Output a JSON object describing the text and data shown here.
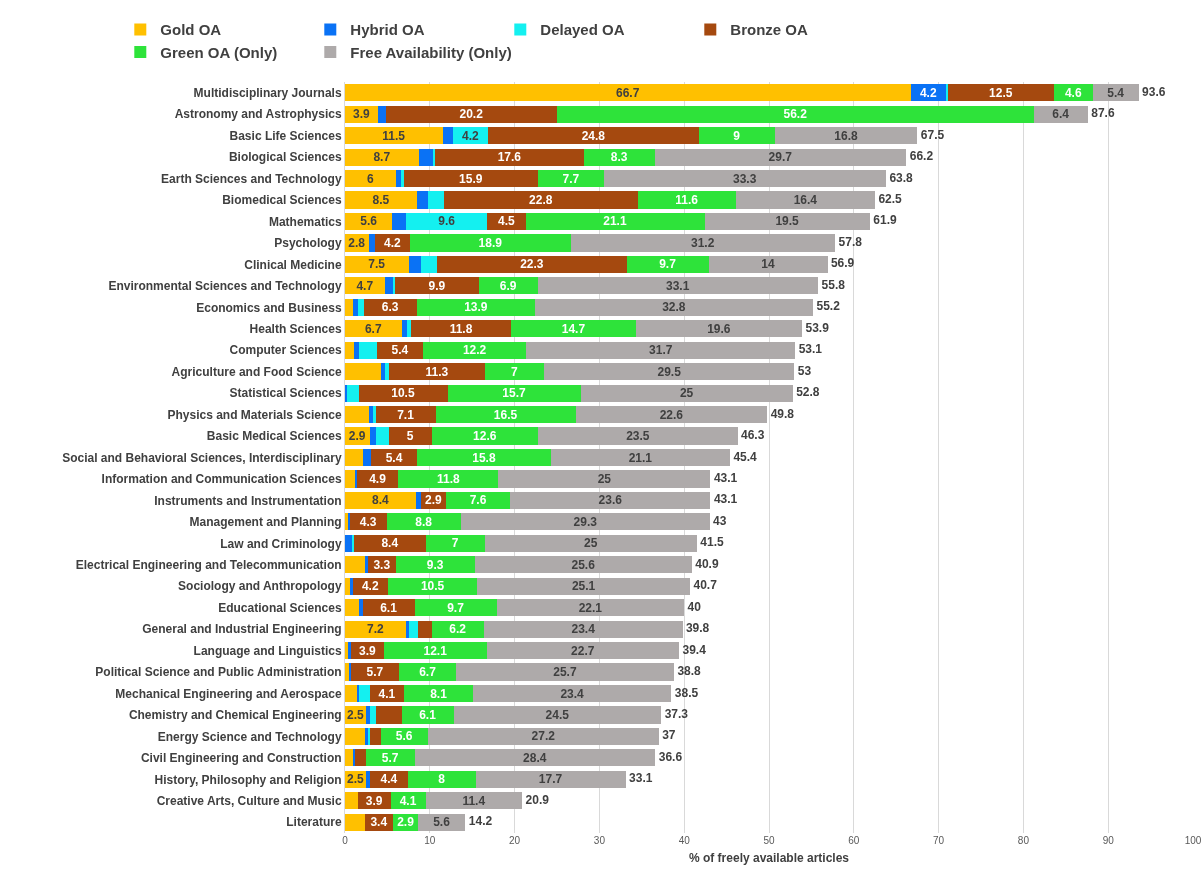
{
  "chart_data": {
    "type": "bar",
    "orientation": "horizontal",
    "stacked": true,
    "xlabel": "% of freely available articles",
    "xlim": [
      0,
      100
    ],
    "xticks": [
      0,
      10,
      20,
      30,
      40,
      50,
      60,
      70,
      80,
      90,
      100
    ],
    "grid": "x",
    "legend": "top",
    "categories": [
      "Multidisciplinary Journals",
      "Astronomy and Astrophysics",
      "Basic Life Sciences",
      "Biological Sciences",
      "Earth Sciences and Technology",
      "Biomedical Sciences",
      "Mathematics",
      "Psychology",
      "Clinical Medicine",
      "Environmental Sciences and Technology",
      "Economics and Business",
      "Health Sciences",
      "Computer Sciences",
      "Agriculture and Food Science",
      "Statistical Sciences",
      "Physics and Materials Science",
      "Basic Medical Sciences",
      "Social and Behavioral Sciences, Interdisciplinary",
      "Information and Communication Sciences",
      "Instruments and Instrumentation",
      "Management and Planning",
      "Law and Criminology",
      "Electrical Engineering and Telecommunication",
      "Sociology and Anthropology",
      "Educational Sciences",
      "General and Industrial Engineering",
      "Language and Linguistics",
      "Political Science and Public Administration",
      "Mechanical Engineering and Aerospace",
      "Chemistry and Chemical Engineering",
      "Energy Science and Technology",
      "Civil Engineering and Construction",
      "History, Philosophy and Religion",
      "Creative Arts, Culture and Music",
      "Literature"
    ],
    "series": [
      {
        "name": "Gold OA",
        "color": "#ffc000",
        "values": [
          66.7,
          3.9,
          11.5,
          8.7,
          6,
          8.5,
          5.6,
          2.8,
          7.5,
          4.7,
          0.9,
          6.7,
          1.1,
          4.2,
          0,
          2.8,
          2.9,
          2.1,
          1.2,
          8.4,
          0.3,
          0,
          2.4,
          0.6,
          1.7,
          7.2,
          0.4,
          0.5,
          1.4,
          2.5,
          2.3,
          0.9,
          2.5,
          1.5,
          2.3
        ],
        "value_labels": [
          "66.7",
          "3.9",
          "11.5",
          "8.7",
          "6",
          "8.5",
          "5.6",
          "2.8",
          "7.5",
          "4.7",
          null,
          "6.7",
          null,
          null,
          null,
          null,
          "2.9",
          null,
          null,
          "8.4",
          null,
          null,
          null,
          null,
          null,
          "7.2",
          null,
          null,
          null,
          "2.5",
          null,
          null,
          "2.5",
          null,
          null
        ]
      },
      {
        "name": "Hybrid OA",
        "color": "#0a72f5",
        "values": [
          4.2,
          0.9,
          1.2,
          1.7,
          0.6,
          1.3,
          1.6,
          0.7,
          1.5,
          1.0,
          0.6,
          0.6,
          0.5,
          0.5,
          0.2,
          0.5,
          0.7,
          1.0,
          0.2,
          0.6,
          0.3,
          0.9,
          0.3,
          0.3,
          0.4,
          0.3,
          0.3,
          0.2,
          0.3,
          0.5,
          0.4,
          0.3,
          0.5,
          0,
          0
        ],
        "value_labels": [
          "4.2",
          null,
          null,
          null,
          null,
          null,
          null,
          null,
          null,
          null,
          null,
          null,
          null,
          null,
          null,
          null,
          null,
          null,
          null,
          null,
          null,
          null,
          null,
          null,
          null,
          null,
          null,
          null,
          null,
          null,
          null,
          null,
          null,
          null,
          null
        ]
      },
      {
        "name": "Delayed OA",
        "color": "#14f0f0",
        "values": [
          0.2,
          0,
          4.2,
          0.2,
          0.3,
          1.9,
          9.6,
          0,
          1.9,
          0.2,
          0.7,
          0.5,
          2.2,
          0.5,
          1.4,
          0.3,
          1.6,
          0,
          0,
          null,
          0,
          0.2,
          0,
          0,
          0,
          1.1,
          0,
          0,
          1.2,
          0.6,
          0.3,
          0,
          0,
          0,
          0
        ],
        "value_labels": [
          null,
          null,
          "4.2",
          null,
          null,
          null,
          "9.6",
          null,
          null,
          null,
          null,
          null,
          null,
          null,
          null,
          null,
          null,
          null,
          null,
          null,
          null,
          null,
          null,
          null,
          null,
          null,
          null,
          null,
          null,
          null,
          null,
          null,
          null,
          null,
          null
        ]
      },
      {
        "name": "Bronze OA",
        "color": "#a5490f",
        "values": [
          12.5,
          20.2,
          24.8,
          17.6,
          15.9,
          22.8,
          4.5,
          4.2,
          22.3,
          9.9,
          6.3,
          11.8,
          5.4,
          11.3,
          10.5,
          7.1,
          5,
          5.4,
          4.9,
          2.9,
          4.3,
          8.4,
          3.3,
          4.2,
          6.1,
          1.6,
          3.9,
          5.7,
          4.1,
          3.1,
          1.2,
          1.3,
          4.4,
          3.9,
          3.4
        ],
        "value_labels": [
          "12.5",
          "20.2",
          "24.8",
          "17.6",
          "15.9",
          "22.8",
          "4.5",
          "4.2",
          "22.3",
          "9.9",
          "6.3",
          "11.8",
          "5.4",
          "11.3",
          "10.5",
          "7.1",
          "5",
          "5.4",
          "4.9",
          "2.9",
          "4.3",
          "8.4",
          "3.3",
          "4.2",
          "6.1",
          null,
          "3.9",
          "5.7",
          "4.1",
          null,
          null,
          null,
          "4.4",
          "3.9",
          "3.4"
        ]
      },
      {
        "name": "Green OA (Only)",
        "color": "#2ee33a",
        "values": [
          4.6,
          56.2,
          9,
          8.3,
          7.7,
          11.6,
          21.1,
          18.9,
          9.7,
          6.9,
          13.9,
          14.7,
          12.2,
          7,
          15.7,
          16.5,
          12.6,
          15.8,
          11.8,
          7.6,
          8.8,
          7,
          9.3,
          10.5,
          9.7,
          6.2,
          12.1,
          6.7,
          8.1,
          6.1,
          5.6,
          5.7,
          8,
          4.1,
          2.9
        ],
        "value_labels": [
          "4.6",
          "56.2",
          "9",
          "8.3",
          "7.7",
          "11.6",
          "21.1",
          "18.9",
          "9.7",
          "6.9",
          "13.9",
          "14.7",
          "12.2",
          "7",
          "15.7",
          "16.5",
          "12.6",
          "15.8",
          "11.8",
          "7.6",
          "8.8",
          "7",
          "9.3",
          "10.5",
          "9.7",
          "6.2",
          "12.1",
          "6.7",
          "8.1",
          "6.1",
          "5.6",
          "5.7",
          "8",
          "4.1",
          "2.9"
        ]
      },
      {
        "name": "Free Availability (Only)",
        "color": "#aeaaaa",
        "values": [
          5.4,
          6.4,
          16.8,
          29.7,
          33.3,
          16.4,
          19.5,
          31.2,
          14,
          33.1,
          32.8,
          19.6,
          31.7,
          29.5,
          25,
          22.6,
          23.5,
          21.1,
          25,
          23.6,
          29.3,
          25,
          25.6,
          25.1,
          22.1,
          23.4,
          22.7,
          25.7,
          23.4,
          24.5,
          27.2,
          28.4,
          17.7,
          11.4,
          5.6
        ],
        "value_labels": [
          "5.4",
          "6.4",
          "16.8",
          "29.7",
          "33.3",
          "16.4",
          "19.5",
          "31.2",
          "14",
          "33.1",
          "32.8",
          "19.6",
          "31.7",
          "29.5",
          "25",
          "22.6",
          "23.5",
          "21.1",
          "25",
          "23.6",
          "29.3",
          "25",
          "25.6",
          "25.1",
          "22.1",
          "23.4",
          "22.7",
          "25.7",
          "23.4",
          "24.5",
          "27.2",
          "28.4",
          "17.7",
          "11.4",
          "5.6"
        ]
      }
    ],
    "totals": [
      "93.6",
      "87.6",
      "67.5",
      "66.2",
      "63.8",
      "62.5",
      "61.9",
      "57.8",
      "56.9",
      "55.8",
      "55.2",
      "53.9",
      "53.1",
      "53",
      "52.8",
      "49.8",
      "46.3",
      "45.4",
      "43.1",
      "43.1",
      "43",
      "41.5",
      "40.9",
      "40.7",
      "40",
      "39.8",
      "39.4",
      "38.8",
      "38.5",
      "37.3",
      "37",
      "36.6",
      "33.1",
      "20.9",
      "14.2"
    ]
  }
}
